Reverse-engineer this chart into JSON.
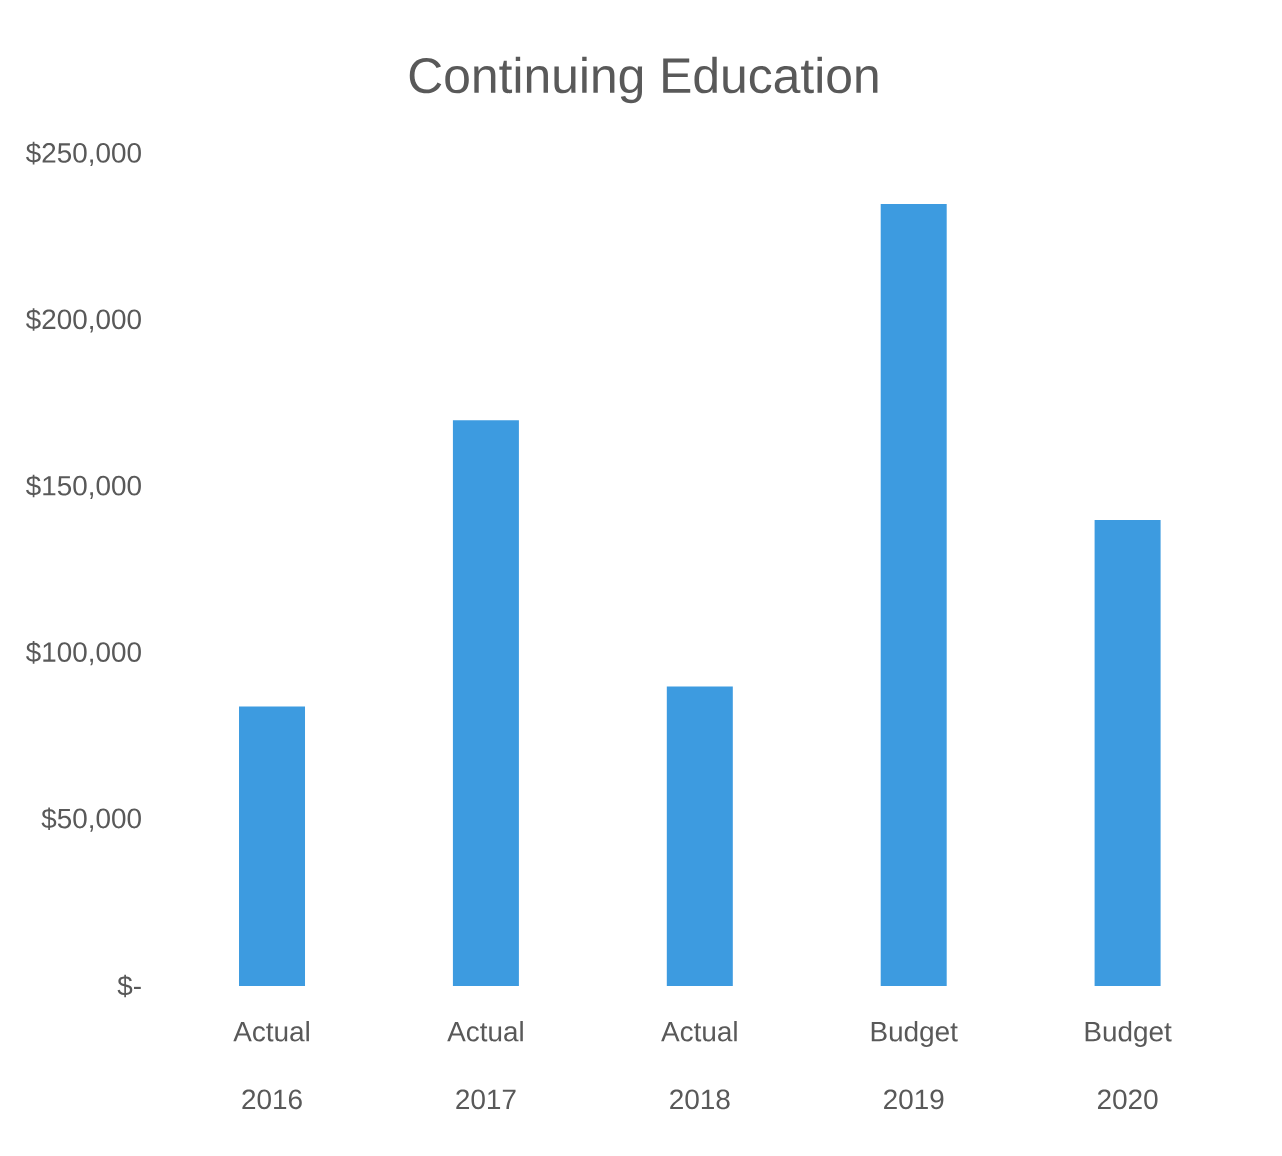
{
  "chart_data": {
    "type": "bar",
    "title": "Continuing Education",
    "categories": [
      "Actual 2016",
      "Actual 2017",
      "Actual 2018",
      "Budget 2019",
      "Budget 2020"
    ],
    "values": [
      84000,
      170000,
      90000,
      235000,
      140000
    ],
    "color": "#3d9be0",
    "ylim": [
      0,
      250000
    ],
    "yticks": [
      {
        "value": 0,
        "label": "$-"
      },
      {
        "value": 50000,
        "label": "$50,000"
      },
      {
        "value": 100000,
        "label": "$100,000"
      },
      {
        "value": 150000,
        "label": "$150,000"
      },
      {
        "value": 200000,
        "label": "$200,000"
      },
      {
        "value": 250000,
        "label": "$250,000"
      }
    ]
  }
}
